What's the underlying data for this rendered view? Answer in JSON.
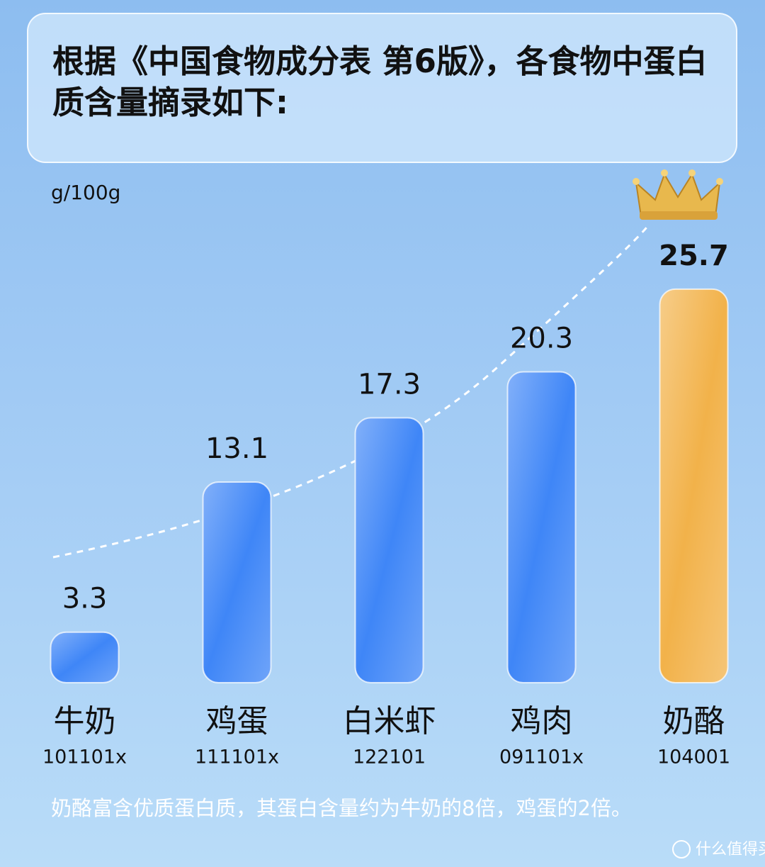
{
  "chart_data": {
    "type": "bar",
    "title": "根据《中国食物成分表 第6版》，各食物中蛋白质含量摘录如下:",
    "y_label": "g/100g",
    "categories": [
      "牛奶",
      "鸡蛋",
      "白米虾",
      "鸡肉",
      "奶酪"
    ],
    "category_codes": [
      "101101x",
      "111101x",
      "122101",
      "091101x",
      "104001"
    ],
    "values": [
      3.3,
      13.1,
      17.3,
      20.3,
      25.7
    ],
    "colors": [
      "#3f86f7",
      "#3f86f7",
      "#3f86f7",
      "#3f86f7",
      "#f2b24a"
    ],
    "annotation": "奶酪富含优质蛋白质，其蛋白含量约为牛奶的8倍，鸡蛋的2倍。",
    "watermark": "什么值得买"
  }
}
